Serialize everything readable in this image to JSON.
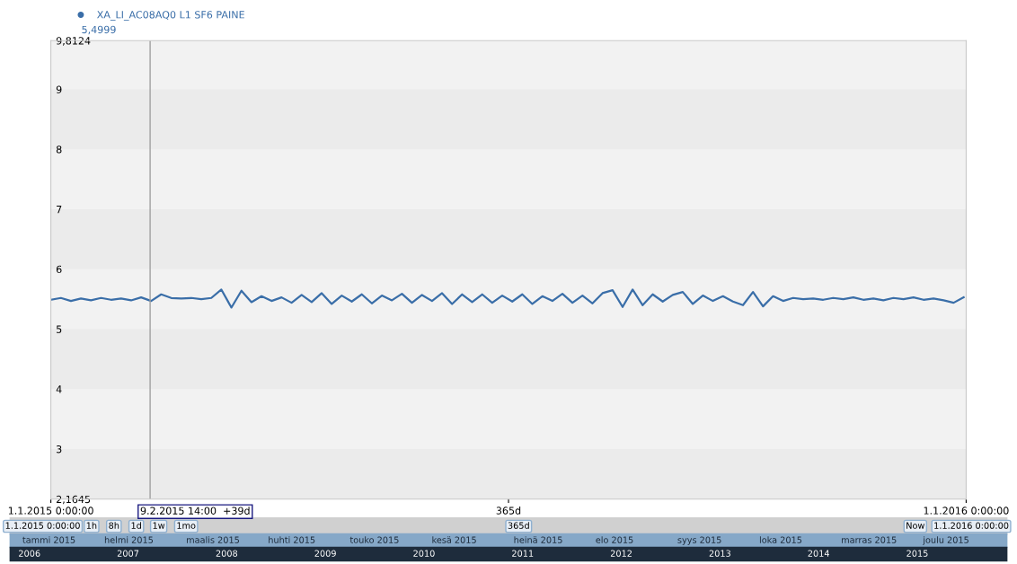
{
  "chart_data": {
    "type": "line",
    "ylim": [
      2.1645,
      9.8124
    ],
    "yticks": [
      {
        "value": 2.1645,
        "label": "2,1645"
      },
      3,
      4,
      5,
      6,
      7,
      8,
      9,
      {
        "value": 9.8124,
        "label": "9,8124"
      }
    ],
    "xlim": [
      "2015-01-01",
      "2016-01-01"
    ],
    "xticks": [
      {
        "value": "2015-01-01",
        "label": "1.1.2015 0:00:00"
      },
      {
        "value": "2015-07-02T12:00",
        "label": "365d"
      },
      {
        "value": "2016-01-01",
        "label": "1.1.2016 0:00:00"
      }
    ],
    "x": [
      "2015-01-01",
      "2015-01-05",
      "2015-01-09",
      "2015-01-13",
      "2015-01-17",
      "2015-01-21",
      "2015-01-25",
      "2015-01-29",
      "2015-02-02",
      "2015-02-06",
      "2015-02-10",
      "2015-02-14",
      "2015-02-18",
      "2015-02-22",
      "2015-02-26",
      "2015-03-02",
      "2015-03-06",
      "2015-03-10",
      "2015-03-14",
      "2015-03-18",
      "2015-03-22",
      "2015-03-26",
      "2015-03-30",
      "2015-04-03",
      "2015-04-07",
      "2015-04-11",
      "2015-04-15",
      "2015-04-19",
      "2015-04-23",
      "2015-04-27",
      "2015-05-01",
      "2015-05-05",
      "2015-05-09",
      "2015-05-13",
      "2015-05-17",
      "2015-05-21",
      "2015-05-25",
      "2015-05-29",
      "2015-06-02",
      "2015-06-06",
      "2015-06-10",
      "2015-06-14",
      "2015-06-18",
      "2015-06-22",
      "2015-06-26",
      "2015-06-30",
      "2015-07-04",
      "2015-07-08",
      "2015-07-12",
      "2015-07-16",
      "2015-07-20",
      "2015-07-24",
      "2015-07-28",
      "2015-08-01",
      "2015-08-05",
      "2015-08-09",
      "2015-08-13",
      "2015-08-17",
      "2015-08-21",
      "2015-08-25",
      "2015-08-29",
      "2015-09-02",
      "2015-09-06",
      "2015-09-10",
      "2015-09-14",
      "2015-09-18",
      "2015-09-22",
      "2015-09-26",
      "2015-09-30",
      "2015-10-04",
      "2015-10-08",
      "2015-10-12",
      "2015-10-16",
      "2015-10-20",
      "2015-10-24",
      "2015-10-28",
      "2015-11-01",
      "2015-11-05",
      "2015-11-09",
      "2015-11-13",
      "2015-11-17",
      "2015-11-21",
      "2015-11-25",
      "2015-11-29",
      "2015-12-03",
      "2015-12-07",
      "2015-12-11",
      "2015-12-15",
      "2015-12-19",
      "2015-12-23",
      "2015-12-27",
      "2015-12-31"
    ],
    "series": [
      {
        "name": "XA_LI_AC08AQ0 L1 SF6 PAINE",
        "color": "#3a6ea8",
        "values": [
          5.49,
          5.52,
          5.47,
          5.51,
          5.48,
          5.52,
          5.49,
          5.51,
          5.48,
          5.53,
          5.47,
          5.58,
          5.52,
          5.51,
          5.52,
          5.5,
          5.52,
          5.66,
          5.36,
          5.64,
          5.45,
          5.55,
          5.47,
          5.53,
          5.44,
          5.57,
          5.45,
          5.6,
          5.42,
          5.56,
          5.46,
          5.58,
          5.43,
          5.56,
          5.48,
          5.59,
          5.44,
          5.57,
          5.47,
          5.6,
          5.42,
          5.58,
          5.45,
          5.58,
          5.44,
          5.56,
          5.46,
          5.58,
          5.42,
          5.55,
          5.47,
          5.59,
          5.44,
          5.56,
          5.43,
          5.6,
          5.65,
          5.37,
          5.66,
          5.4,
          5.58,
          5.46,
          5.57,
          5.62,
          5.42,
          5.56,
          5.47,
          5.55,
          5.46,
          5.4,
          5.62,
          5.38,
          5.55,
          5.47,
          5.52,
          5.5,
          5.51,
          5.49,
          5.52,
          5.5,
          5.53,
          5.49,
          5.51,
          5.48,
          5.52,
          5.5,
          5.53,
          5.49,
          5.51,
          5.48,
          5.44,
          5.53
        ]
      }
    ],
    "ref_lines": [
      {
        "axis": "x",
        "value": "2015-02-09T14:00",
        "label": "9.2.2015 14:00  +39d",
        "color": "#a0a0a0"
      }
    ],
    "bands": [
      {
        "axis": "y",
        "from": 8,
        "to": 9,
        "color": "#ebebeb"
      },
      {
        "axis": "y",
        "from": 6,
        "to": 7,
        "color": "#ebebeb"
      },
      {
        "axis": "y",
        "from": 4,
        "to": 5,
        "color": "#ebebeb"
      },
      {
        "axis": "y",
        "from": 2.1645,
        "to": 3,
        "color": "#ebebeb"
      }
    ],
    "legend": "top left",
    "grid": false,
    "annotations": [
      "5,4999",
      "1.1.2015 0:00:00",
      "1h",
      "8h",
      "1d",
      "1w",
      "1mo",
      "365d",
      "Now",
      "1.1.2016 0:00:00",
      "tammi 2015",
      "helmi 2015",
      "maalis 2015",
      "huhti 2015",
      "touko 2015",
      "kesä 2015",
      "heinä 2015",
      "elo 2015",
      "syys 2015",
      "loka 2015",
      "marras 2015",
      "joulu 2015",
      "2006",
      "2007",
      "2008",
      "2009",
      "2010",
      "2011",
      "2012",
      "2013",
      "2014",
      "2015"
    ]
  }
}
